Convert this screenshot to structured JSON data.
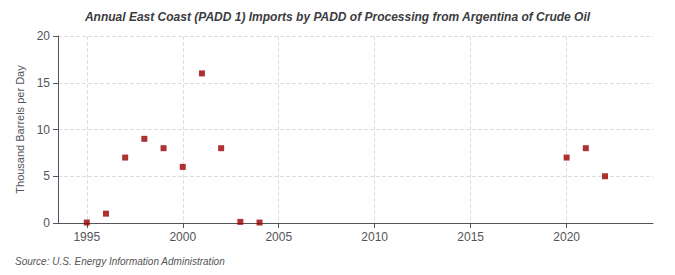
{
  "chart_data": {
    "type": "scatter",
    "title": "Annual East Coast (PADD 1) Imports by PADD of Processing from Argentina of Crude Oil",
    "ylabel": "Thousand Barrels per Day",
    "source": "Source: U.S. Energy Information Administration",
    "x": [
      1995,
      1996,
      1997,
      1998,
      1999,
      2000,
      2001,
      2002,
      2003,
      2004,
      2020,
      2021,
      2022
    ],
    "values": [
      0.05,
      1.0,
      7.0,
      9.0,
      8.0,
      6.0,
      16.0,
      8.0,
      0.12,
      0.05,
      7.0,
      8.0,
      5.0
    ],
    "color": "#990000",
    "marker": "square",
    "xlim": [
      1993.5,
      2024.5
    ],
    "ylim": [
      0,
      20
    ],
    "xticks": [
      1995,
      2000,
      2005,
      2010,
      2015,
      2020
    ],
    "yticks": [
      0,
      5,
      10,
      15,
      20
    ],
    "grid": true
  }
}
